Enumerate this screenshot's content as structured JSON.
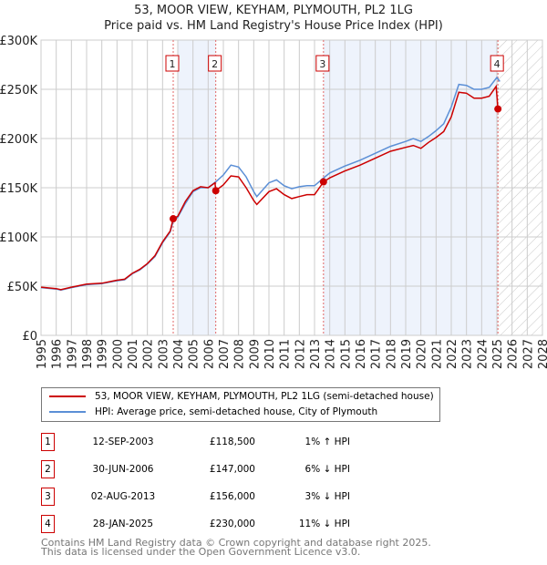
{
  "chart_data": {
    "type": "line",
    "title": "53, MOOR VIEW, KEYHAM, PLYMOUTH, PL2 1LG",
    "subtitle": "Price paid vs. HM Land Registry's House Price Index (HPI)",
    "xlim": [
      1995,
      2028
    ],
    "ylim": [
      0,
      300000
    ],
    "grid": true,
    "y_ticks": [
      {
        "value": 0,
        "label": "£0"
      },
      {
        "value": 50000,
        "label": "£50K"
      },
      {
        "value": 100000,
        "label": "£100K"
      },
      {
        "value": 150000,
        "label": "£150K"
      },
      {
        "value": 200000,
        "label": "£200K"
      },
      {
        "value": 250000,
        "label": "£250K"
      },
      {
        "value": 300000,
        "label": "£300K"
      }
    ],
    "x_ticks": [
      "1995",
      "1996",
      "1997",
      "1998",
      "1999",
      "2000",
      "2001",
      "2002",
      "2003",
      "2004",
      "2005",
      "2006",
      "2007",
      "2008",
      "2009",
      "2010",
      "2011",
      "2012",
      "2013",
      "2014",
      "2015",
      "2016",
      "2017",
      "2018",
      "2019",
      "2020",
      "2021",
      "2022",
      "2023",
      "2024",
      "2025",
      "2026",
      "2027",
      "2028"
    ],
    "shaded_ranges": [
      [
        2004.0,
        2006.5
      ],
      [
        2013.6,
        2025.07
      ]
    ],
    "forecast_hatch_from": 2025.1,
    "series": [
      {
        "name": "53, MOOR VIEW, KEYHAM, PLYMOUTH, PL2 1LG (semi-detached house)",
        "color": "#cc0000",
        "x": [
          1995,
          1996,
          1996.3,
          1997,
          1998,
          1999,
          2000,
          2000.5,
          2001,
          2001.5,
          2002,
          2002.5,
          2003,
          2003.5,
          2003.7,
          2004,
          2004.5,
          2005,
          2005.5,
          2006,
          2006.45,
          2006.5,
          2007,
          2007.5,
          2008,
          2008.5,
          2009,
          2009.2,
          2010,
          2010.5,
          2011,
          2011.5,
          2012,
          2012.5,
          2013,
          2013.6,
          2014,
          2015,
          2016,
          2017,
          2018,
          2019,
          2019.5,
          2020,
          2020.5,
          2021,
          2021.5,
          2022,
          2022.5,
          2023,
          2023.5,
          2024,
          2024.5,
          2024.95,
          2025.07
        ],
        "y": [
          49000,
          47500,
          46500,
          49000,
          52000,
          53000,
          56000,
          57000,
          63000,
          67000,
          73000,
          81000,
          95000,
          106000,
          118500,
          121000,
          136000,
          147000,
          151000,
          150000,
          155000,
          147000,
          153000,
          162000,
          161000,
          150000,
          137000,
          133000,
          146000,
          149000,
          143000,
          139000,
          141000,
          143000,
          143000,
          156000,
          160000,
          167000,
          173000,
          180000,
          187000,
          191000,
          193000,
          190000,
          196000,
          201000,
          207000,
          222000,
          247000,
          246000,
          241000,
          241000,
          243000,
          253000,
          230000
        ]
      },
      {
        "name": "HPI: Average price, semi-detached house, City of Plymouth",
        "color": "#5b8fd6",
        "x": [
          1995,
          1996,
          1996.3,
          1997,
          1998,
          1999,
          2000,
          2000.5,
          2001,
          2001.5,
          2002,
          2002.5,
          2003,
          2003.5,
          2003.7,
          2004,
          2004.5,
          2005,
          2005.5,
          2006,
          2006.5,
          2007,
          2007.5,
          2008,
          2008.5,
          2009,
          2009.2,
          2010,
          2010.5,
          2011,
          2011.5,
          2012,
          2012.5,
          2013,
          2013.6,
          2014,
          2015,
          2016,
          2017,
          2018,
          2019,
          2019.5,
          2020,
          2020.5,
          2021,
          2021.5,
          2022,
          2022.5,
          2023,
          2023.5,
          2024,
          2024.5,
          2025,
          2025.2
        ],
        "y": [
          48500,
          47000,
          46000,
          48500,
          51500,
          52500,
          55500,
          56500,
          62500,
          66500,
          72500,
          80000,
          94000,
          105000,
          116000,
          120000,
          134000,
          146000,
          150000,
          150000,
          156000,
          163000,
          173000,
          171000,
          161000,
          146000,
          141000,
          155000,
          158000,
          152000,
          149000,
          151000,
          152000,
          152000,
          160000,
          165000,
          172000,
          178000,
          185000,
          192000,
          197000,
          200000,
          197000,
          202000,
          208000,
          215000,
          232000,
          255000,
          254000,
          250000,
          250000,
          252000,
          262000,
          258000
        ]
      }
    ],
    "sales": [
      {
        "id": "1",
        "x": 2003.7,
        "y": 118500
      },
      {
        "id": "2",
        "x": 2006.5,
        "y": 147000
      },
      {
        "id": "3",
        "x": 2013.59,
        "y": 156000
      },
      {
        "id": "4",
        "x": 2025.07,
        "y": 230000
      }
    ]
  },
  "legend": {
    "property": "53, MOOR VIEW, KEYHAM, PLYMOUTH, PL2 1LG (semi-detached house)",
    "hpi": "HPI: Average price, semi-detached house, City of Plymouth"
  },
  "transactions": [
    {
      "num": "1",
      "date": "12-SEP-2003",
      "price": "£118,500",
      "hpi": "1% ↑ HPI"
    },
    {
      "num": "2",
      "date": "30-JUN-2006",
      "price": "£147,000",
      "hpi": "6% ↓ HPI"
    },
    {
      "num": "3",
      "date": "02-AUG-2013",
      "price": "£156,000",
      "hpi": "3% ↓ HPI"
    },
    {
      "num": "4",
      "date": "28-JAN-2025",
      "price": "£230,000",
      "hpi": "11% ↓ HPI"
    }
  ],
  "footer": {
    "line1": "Contains HM Land Registry data © Crown copyright and database right 2025.",
    "line2": "This data is licensed under the Open Government Licence v3.0."
  }
}
